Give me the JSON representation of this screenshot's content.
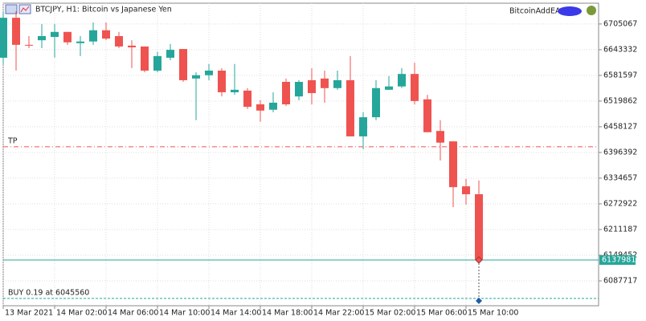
{
  "chart_data": {
    "type": "candlestick",
    "title": "BTCJPY, H1:  Bitcoin vs Japanese Yen",
    "expert_label": "BitcoinAddEA",
    "categories": [
      "13 Mar 2021",
      null,
      null,
      null,
      "14 Mar 02:00",
      null,
      null,
      null,
      "14 Mar 06:00",
      null,
      null,
      null,
      "14 Mar 10:00",
      null,
      null,
      null,
      "14 Mar 14:00",
      null,
      null,
      null,
      "14 Mar 18:00",
      null,
      null,
      null,
      "14 Mar 22:00",
      null,
      null,
      null,
      "15 Mar 02:00",
      null,
      null,
      null,
      "15 Mar 06:00",
      null,
      null,
      null,
      "15 Mar 10:00",
      null
    ],
    "open": [
      6624000,
      6720000,
      6655000,
      6666000,
      6674000,
      6686000,
      6659000,
      6663000,
      6690000,
      6676000,
      6653000,
      6651000,
      6593000,
      6624000,
      6645000,
      6574000,
      6582000,
      6593000,
      6541000,
      6545000,
      6512000,
      6499000,
      6566000,
      6531000,
      6570000,
      6574000,
      6551000,
      6570000,
      6435000,
      6481000,
      6547000,
      6555000,
      6585000,
      6524000,
      6448000,
      6423000,
      6315000,
      6296000
    ],
    "high": [
      6734000,
      6736000,
      6676000,
      6705000,
      6705000,
      6686000,
      6676000,
      6709000,
      6709000,
      6686000,
      6666000,
      6651000,
      6638000,
      6657000,
      6645000,
      6589000,
      6609000,
      6599000,
      6609000,
      6551000,
      6522000,
      6541000,
      6574000,
      6570000,
      6599000,
      6593000,
      6593000,
      6628000,
      6493000,
      6570000,
      6580000,
      6599000,
      6612000,
      6535000,
      6474000,
      6423000,
      6333000,
      6329000
    ],
    "low": [
      6609000,
      6593000,
      6647000,
      6647000,
      6624000,
      6655000,
      6628000,
      6655000,
      6666000,
      6647000,
      6599000,
      6589000,
      6589000,
      6618000,
      6566000,
      6474000,
      6570000,
      6531000,
      6535000,
      6501000,
      6470000,
      6493000,
      6508000,
      6522000,
      6512000,
      6516000,
      6547000,
      6435000,
      6404000,
      6474000,
      6547000,
      6551000,
      6512000,
      6445000,
      6377000,
      6265000,
      6271000,
      6130000
    ],
    "close": [
      6720000,
      6655000,
      6653000,
      6676000,
      6686000,
      6661000,
      6663000,
      6690000,
      6670000,
      6651000,
      6649000,
      6593000,
      6628000,
      6643000,
      6570000,
      6582000,
      6593000,
      6541000,
      6547000,
      6506000,
      6497000,
      6516000,
      6512000,
      6566000,
      6539000,
      6551000,
      6570000,
      6435000,
      6481000,
      6551000,
      6555000,
      6585000,
      6520000,
      6445000,
      6420000,
      6313000,
      6296000,
      6137981
    ],
    "bull_color": "#26a69a",
    "bear_color": "#ef5350",
    "ylim": [
      6028000,
      6755000
    ],
    "yticks": [
      6087717,
      6149452,
      6211187,
      6272922,
      6334657,
      6396392,
      6458127,
      6519862,
      6581597,
      6643332,
      6705067
    ],
    "grid": true,
    "current_price": 6137981,
    "tp": {
      "label": "TP",
      "value": 6410000,
      "color": "#ef5350"
    },
    "buy": {
      "label": "BUY 0.19 at 6045560",
      "value": 6045560,
      "color": "#26a69a"
    }
  }
}
